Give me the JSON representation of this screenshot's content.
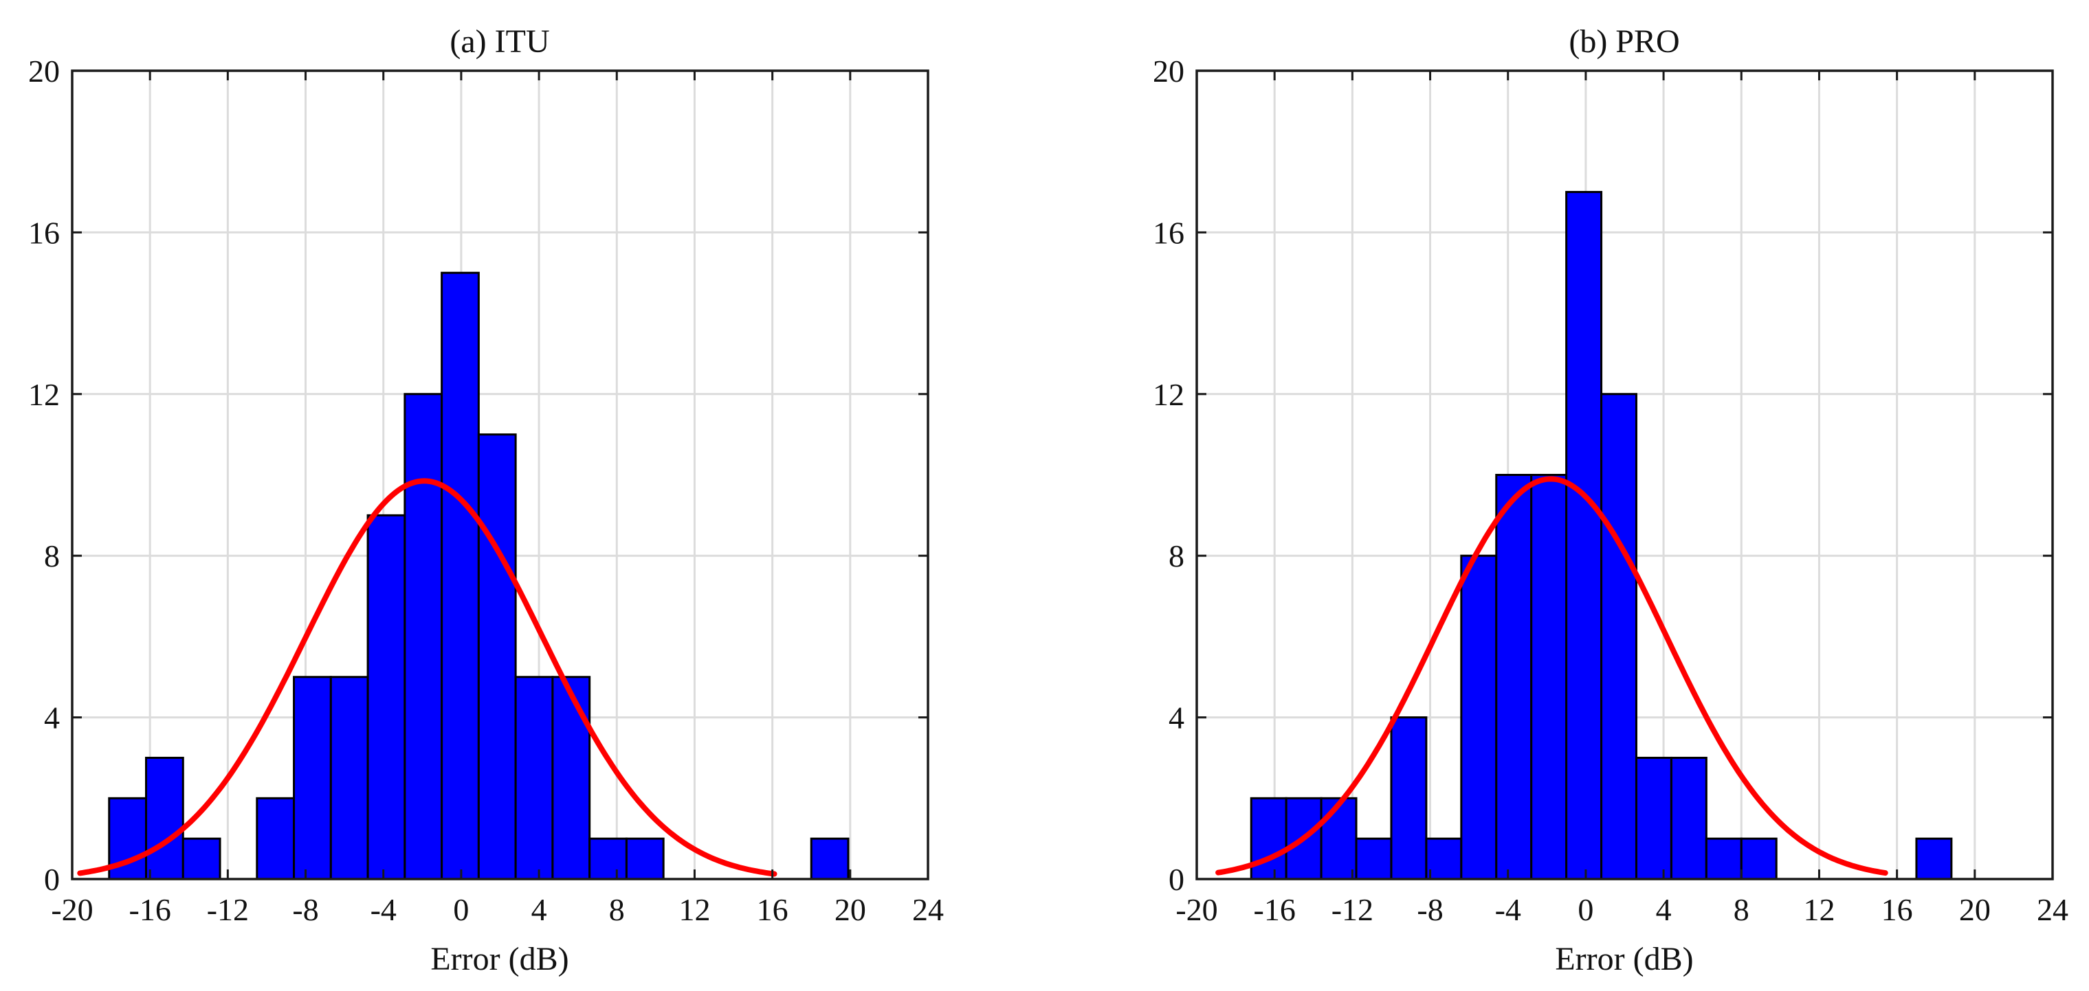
{
  "chart_data": [
    {
      "type": "bar",
      "title": "(a) ITU",
      "xlabel": "Error (dB)",
      "ylabel": "",
      "xlim": [
        -20,
        24
      ],
      "ylim": [
        0,
        20
      ],
      "xticks": [
        -20,
        -16,
        -12,
        -8,
        -4,
        0,
        4,
        8,
        12,
        16,
        20,
        24
      ],
      "yticks": [
        0,
        4,
        8,
        12,
        16,
        20
      ],
      "grid": true,
      "bin_edges": [
        -18.1,
        -16.2,
        -14.3,
        -12.4,
        -10.5,
        -8.6,
        -6.7,
        -4.8,
        -2.9,
        -1.0,
        0.9,
        2.8,
        4.7,
        6.6,
        8.5,
        10.4,
        12.3,
        14.2,
        16.1,
        18.0,
        19.9
      ],
      "values": [
        2,
        3,
        1,
        0,
        2,
        5,
        5,
        9,
        12,
        15,
        11,
        5,
        5,
        1,
        1,
        0,
        0,
        0,
        0,
        1
      ],
      "fit": {
        "type": "normal",
        "mu": -1.9,
        "sigma": 6.1,
        "peak": 9.85,
        "x_range": [
          -19.6,
          16.1
        ]
      },
      "colors": {
        "bars": "#0000ff",
        "bar_edge": "#000000",
        "fit": "#ff0000"
      }
    },
    {
      "type": "bar",
      "title": "(b) PRO",
      "xlabel": "Error (dB)",
      "ylabel": "",
      "xlim": [
        -20,
        24
      ],
      "ylim": [
        0,
        20
      ],
      "xticks": [
        -20,
        -16,
        -12,
        -8,
        -4,
        0,
        4,
        8,
        12,
        16,
        20,
        24
      ],
      "yticks": [
        0,
        4,
        8,
        12,
        16,
        20
      ],
      "grid": true,
      "bin_edges": [
        -17.2,
        -15.4,
        -13.6,
        -11.8,
        -10.0,
        -8.2,
        -6.4,
        -4.6,
        -2.8,
        -1.0,
        0.8,
        2.6,
        4.4,
        6.2,
        8.0,
        9.8,
        11.6,
        13.4,
        15.2,
        17.0,
        18.8
      ],
      "values": [
        2,
        2,
        2,
        1,
        4,
        1,
        8,
        10,
        10,
        17,
        12,
        3,
        3,
        1,
        1,
        0,
        0,
        0,
        0,
        1
      ],
      "fit": {
        "type": "normal",
        "mu": -1.8,
        "sigma": 5.95,
        "peak": 9.9,
        "x_range": [
          -18.9,
          15.4
        ]
      },
      "colors": {
        "bars": "#0000ff",
        "bar_edge": "#000000",
        "fit": "#ff0000"
      }
    }
  ]
}
